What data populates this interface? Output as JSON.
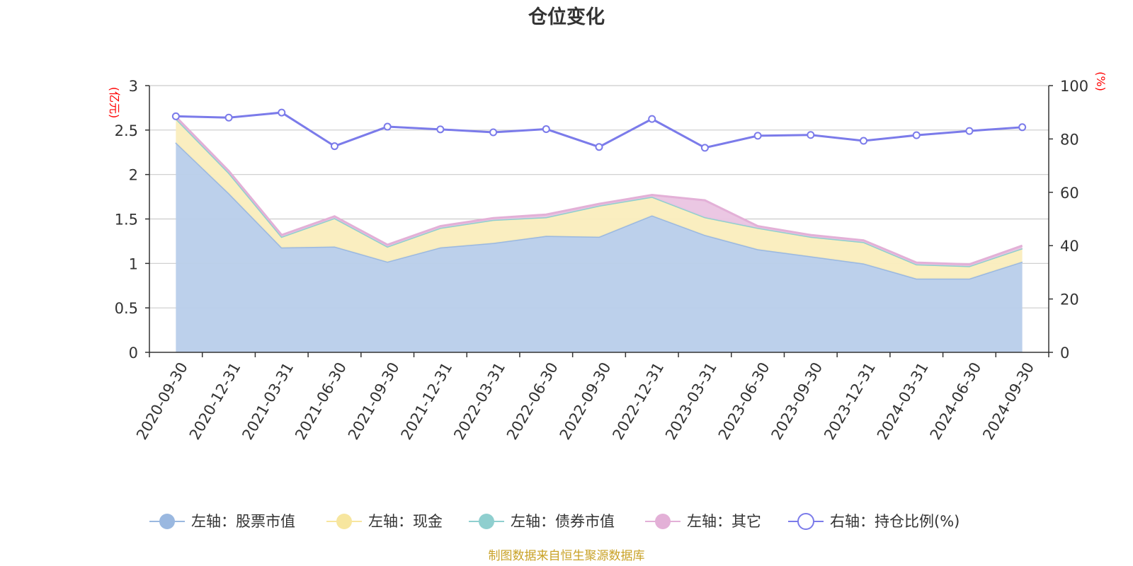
{
  "chart_data": {
    "type": "area",
    "title": "仓位变化",
    "left_unit": "(亿元)",
    "right_unit": "(%)",
    "source": "制图数据来自恒生聚源数据库",
    "categories": [
      "2020-09-30",
      "2020-12-31",
      "2021-03-31",
      "2021-06-30",
      "2021-09-30",
      "2021-12-31",
      "2022-03-31",
      "2022-06-30",
      "2022-09-30",
      "2022-12-31",
      "2023-03-31",
      "2023-06-30",
      "2023-09-30",
      "2023-12-31",
      "2024-03-31",
      "2024-06-30",
      "2024-09-30"
    ],
    "left_ylim": [
      0,
      3
    ],
    "left_ticks": [
      0,
      0.5,
      1,
      1.5,
      2,
      2.5,
      3
    ],
    "right_ylim": [
      0,
      100
    ],
    "right_ticks": [
      0,
      20,
      40,
      60,
      80,
      100
    ],
    "stacked_series": [
      {
        "name": "左轴：股票市值",
        "color": "#9ab8e0",
        "fill": "#b8cdea",
        "values": [
          2.36,
          1.79,
          1.18,
          1.19,
          1.02,
          1.18,
          1.23,
          1.31,
          1.3,
          1.54,
          1.32,
          1.16,
          1.08,
          1.0,
          0.83,
          0.83,
          1.02
        ]
      },
      {
        "name": "左轴：现金",
        "color": "#f7e69f",
        "fill": "#faedbd",
        "values": [
          0.27,
          0.23,
          0.12,
          0.32,
          0.17,
          0.22,
          0.26,
          0.21,
          0.35,
          0.21,
          0.2,
          0.24,
          0.22,
          0.24,
          0.16,
          0.14,
          0.15
        ]
      },
      {
        "name": "左轴：债券市值",
        "color": "#8fcfcf",
        "fill": "#a8dada",
        "values": [
          0,
          0,
          0,
          0,
          0,
          0,
          0,
          0,
          0,
          0,
          0,
          0,
          0,
          0,
          0,
          0,
          0
        ]
      },
      {
        "name": "左轴：其它",
        "color": "#e3b0d7",
        "fill": "#eac4e1",
        "values": [
          0.02,
          0.02,
          0.02,
          0.02,
          0.02,
          0.02,
          0.02,
          0.03,
          0.02,
          0.02,
          0.19,
          0.02,
          0.02,
          0.02,
          0.02,
          0.02,
          0.03
        ]
      }
    ],
    "line_series": {
      "name": "右轴：持仓比例(%)",
      "color": "#7b7bea",
      "values": [
        88.5,
        88.0,
        89.9,
        77.3,
        84.6,
        83.6,
        82.5,
        83.7,
        77.0,
        87.5,
        76.7,
        81.2,
        81.5,
        79.3,
        81.4,
        83.0,
        84.4
      ]
    }
  }
}
